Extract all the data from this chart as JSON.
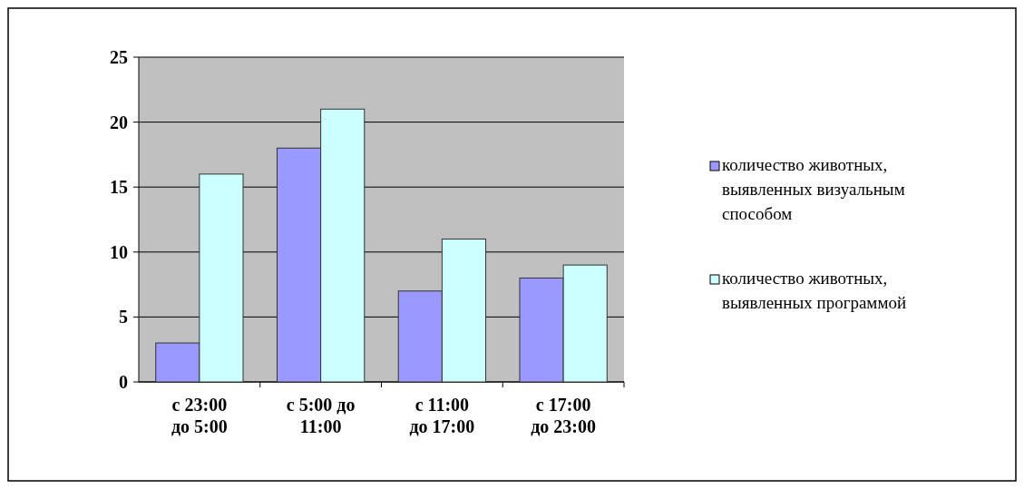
{
  "chart_data": {
    "type": "bar",
    "categories": [
      "с 23:00 до 5:00",
      "с 5:00 до 11:00",
      "с 11:00 до 17:00",
      "с 17:00 до 23:00"
    ],
    "series": [
      {
        "name": "количество животных, выявленных визуальным способом",
        "color": "#9999ff",
        "values": [
          3,
          18,
          7,
          8
        ]
      },
      {
        "name": "количество животных, выявленных программой",
        "color": "#ccffff",
        "values": [
          16,
          21,
          11,
          9
        ]
      }
    ],
    "ylim": [
      0,
      25
    ],
    "yticks": [
      0,
      5,
      10,
      15,
      20,
      25
    ],
    "grid": "y",
    "legend": "right"
  }
}
